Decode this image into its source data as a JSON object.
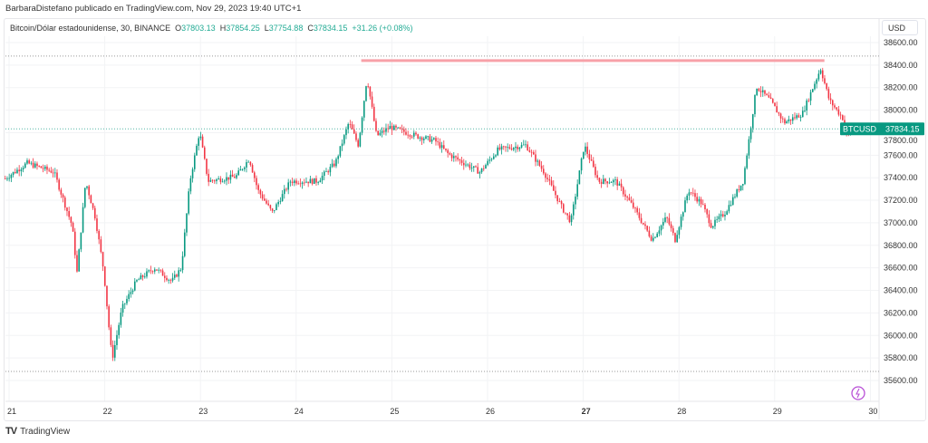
{
  "header": {
    "text": "BarbaraDistefano publicado en TradingView.com, Nov 29, 2023 19:40 UTC+1"
  },
  "legend": {
    "symbol": "Bitcoin/Dólar estadounidense, 30, BINANCE",
    "o_label": "O",
    "o": "37803.13",
    "h_label": "H",
    "h": "37854.25",
    "l_label": "L",
    "l": "37754.88",
    "c_label": "C",
    "c": "37834.15",
    "change": "+31.26 (+0.08%)"
  },
  "currency": "USD",
  "price_tag": {
    "symbol": "BTCUSD",
    "price": "37834.15",
    "color": "#089981"
  },
  "footer": {
    "brand": "TradingView"
  },
  "colors": {
    "up": "#089981",
    "down": "#f23645",
    "resistance": "#f7a1a8"
  },
  "chart_data": {
    "type": "candlestick",
    "interval": "30 min",
    "ylim": [
      35500,
      38750
    ],
    "xlim": [
      20.94,
      30.0
    ],
    "y_ticks": [
      "38600.00",
      "38400.00",
      "38200.00",
      "38000.00",
      "37800.00",
      "37600.00",
      "37400.00",
      "37200.00",
      "37000.00",
      "36800.00",
      "36600.00",
      "36400.00",
      "36200.00",
      "36000.00",
      "35800.00",
      "35600.00"
    ],
    "x_ticks": [
      "21",
      "22",
      "23",
      "24",
      "25",
      "26",
      "27",
      "28",
      "29",
      "30"
    ],
    "close_path": [
      [
        20.96,
        37393
      ],
      [
        21.19,
        37530
      ],
      [
        21.47,
        37450
      ],
      [
        21.66,
        36970
      ],
      [
        21.71,
        36560
      ],
      [
        21.8,
        37370
      ],
      [
        21.9,
        37050
      ],
      [
        21.99,
        36570
      ],
      [
        22.06,
        35920
      ],
      [
        22.08,
        35800
      ],
      [
        22.18,
        36240
      ],
      [
        22.33,
        36480
      ],
      [
        22.52,
        36600
      ],
      [
        22.7,
        36480
      ],
      [
        22.8,
        36600
      ],
      [
        22.89,
        37370
      ],
      [
        22.99,
        37810
      ],
      [
        23.08,
        37370
      ],
      [
        23.37,
        37410
      ],
      [
        23.51,
        37570
      ],
      [
        23.6,
        37290
      ],
      [
        23.75,
        37090
      ],
      [
        23.94,
        37370
      ],
      [
        24.22,
        37370
      ],
      [
        24.41,
        37530
      ],
      [
        24.55,
        37890
      ],
      [
        24.65,
        37690
      ],
      [
        24.74,
        38290
      ],
      [
        24.84,
        37770
      ],
      [
        24.98,
        37850
      ],
      [
        25.26,
        37770
      ],
      [
        25.45,
        37730
      ],
      [
        25.59,
        37610
      ],
      [
        25.92,
        37450
      ],
      [
        26.11,
        37650
      ],
      [
        26.4,
        37690
      ],
      [
        26.59,
        37450
      ],
      [
        26.78,
        37130
      ],
      [
        26.87,
        37010
      ],
      [
        27.01,
        37690
      ],
      [
        27.16,
        37370
      ],
      [
        27.34,
        37370
      ],
      [
        27.53,
        37130
      ],
      [
        27.72,
        36850
      ],
      [
        27.87,
        37050
      ],
      [
        27.96,
        36850
      ],
      [
        28.1,
        37290
      ],
      [
        28.24,
        37170
      ],
      [
        28.34,
        36970
      ],
      [
        28.48,
        37090
      ],
      [
        28.67,
        37370
      ],
      [
        28.81,
        38210
      ],
      [
        28.95,
        38090
      ],
      [
        29.1,
        37890
      ],
      [
        29.29,
        37970
      ],
      [
        29.48,
        38370
      ],
      [
        29.57,
        38090
      ],
      [
        29.71,
        37930
      ],
      [
        29.76,
        37770
      ],
      [
        29.85,
        37834
      ]
    ],
    "resistance": {
      "price": 38440,
      "from": 24.68,
      "to": 29.52
    },
    "high_line": 38480,
    "low_line": 35680,
    "last_price": 37834.15
  }
}
